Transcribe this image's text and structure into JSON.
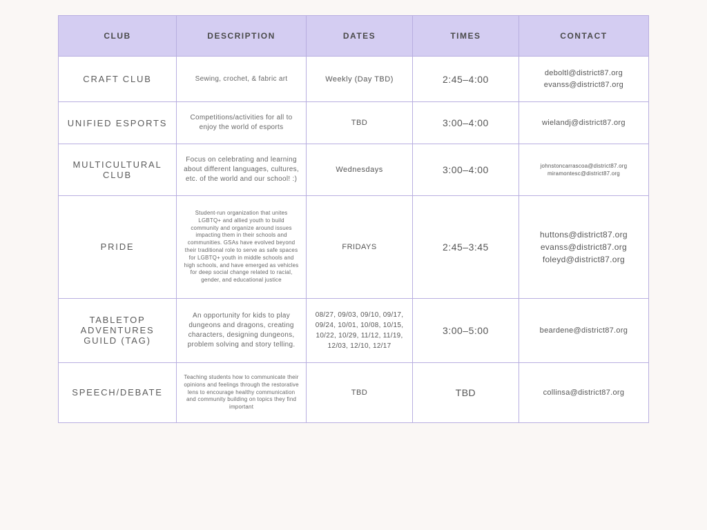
{
  "table": {
    "type": "table",
    "header_bg": "#d4cdf2",
    "border_color": "#b8aee0",
    "background_color": "#ffffff",
    "page_bg": "#faf7f5",
    "columns": [
      {
        "label": "CLUB",
        "width": "20%"
      },
      {
        "label": "DESCRIPTION",
        "width": "22%"
      },
      {
        "label": "DATES",
        "width": "18%"
      },
      {
        "label": "TIMES",
        "width": "18%"
      },
      {
        "label": "CONTACT",
        "width": "22%"
      }
    ],
    "rows": [
      {
        "club": "CRAFT CLUB",
        "description": "Sewing, crochet, & fabric art",
        "dates": "Weekly (Day TBD)",
        "times": "2:45–4:00",
        "contacts": [
          "deboltl@district87.org",
          "evanss@district87.org"
        ],
        "desc_size": "desc",
        "contact_size": "contact"
      },
      {
        "club": "UNIFIED ESPORTS",
        "description": "Competitions/activities for all to enjoy the world of esports",
        "dates": "TBD",
        "times": "3:00–4:00",
        "contacts": [
          "wielandj@district87.org"
        ],
        "desc_size": "desc",
        "contact_size": "contact"
      },
      {
        "club": "MULTICULTURAL CLUB",
        "description": "Focus on celebrating and learning about different languages, cultures, etc. of the world and our school! :)",
        "dates": "Wednesdays",
        "times": "3:00–4:00",
        "contacts": [
          "johnstoncarrascoa@district87.org",
          "miramontesc@district87.org"
        ],
        "desc_size": "desc",
        "contact_size": "contact-small"
      },
      {
        "club": "PRIDE",
        "description": "Student-run organization that unites LGBTQ+ and allied youth to build community and organize around issues impacting them in their schools and communities. GSAs have evolved beyond their traditional role to serve as safe spaces for LGBTQ+ youth in middle schools and high schools, and have emerged as vehicles for deep social change related to racial, gender, and educational justice",
        "dates": "FRIDAYS",
        "times": "2:45–3:45",
        "contacts": [
          "huttons@district87.org",
          "evanss@district87.org",
          "foleyd@district87.org"
        ],
        "desc_size": "desc-small",
        "contact_size": "contact-med"
      },
      {
        "club": "TABLETOP ADVENTURES GUILD (TAG)",
        "description": "An opportunity for kids to play dungeons and dragons, creating characters, designing dungeons, problem solving and story telling.",
        "dates": "08/27, 09/03, 09/10, 09/17, 09/24, 10/01, 10/08, 10/15, 10/22, 10/29, 11/12, 11/19, 12/03, 12/10, 12/17",
        "times": "3:00–5:00",
        "contacts": [
          "beardene@district87.org"
        ],
        "desc_size": "desc",
        "dates_size": "dates-small",
        "contact_size": "contact"
      },
      {
        "club": "SPEECH/DEBATE",
        "description": "Teaching students how to communicate their opinions and feelings through the restorative lens to encourage healthy communication and community building on topics they find important",
        "dates": "TBD",
        "times": "TBD",
        "contacts": [
          "collinsa@district87.org"
        ],
        "desc_size": "desc-small",
        "contact_size": "contact"
      }
    ]
  }
}
